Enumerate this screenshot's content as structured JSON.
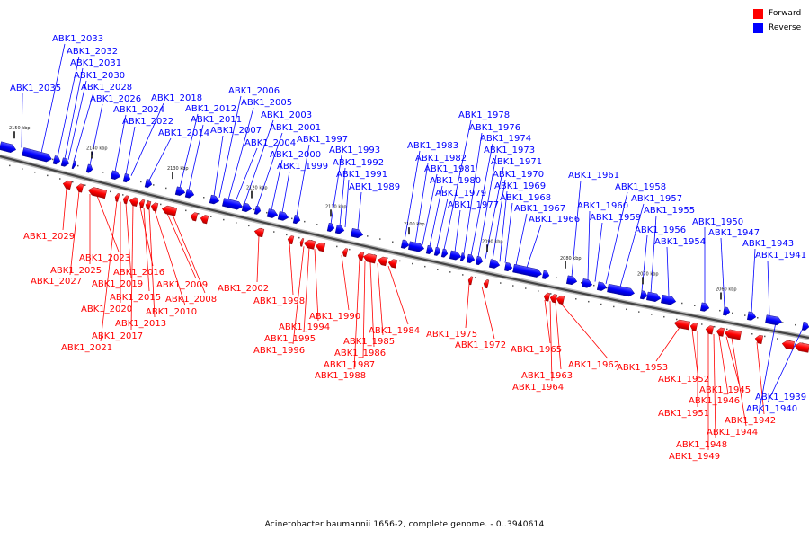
{
  "legend": {
    "forward_label": "Forward",
    "reverse_label": "Reverse",
    "forward_color": "#ff0000",
    "reverse_color": "#0000ff"
  },
  "caption": "Acinetobacter baumannii 1656-2, complete genome. - 0..3940614",
  "ticks": [
    "2150 kbp",
    "2140 kbp",
    "2130 kbp",
    "2120 kbp",
    "2110 kbp",
    "2100 kbp",
    "2090 kbp",
    "2080 kbp",
    "2070 kbp",
    "2060 kbp"
  ],
  "reverse_genes": [
    "ABK1_2035",
    "ABK1_2033",
    "ABK1_2032",
    "ABK1_2031",
    "ABK1_2030",
    "ABK1_2028",
    "ABK1_2026",
    "ABK1_2024",
    "ABK1_2022",
    "ABK1_2018",
    "ABK1_2014",
    "ABK1_2012",
    "ABK1_2011",
    "ABK1_2007",
    "ABK1_2006",
    "ABK1_2005",
    "ABK1_2004",
    "ABK1_2003",
    "ABK1_2001",
    "ABK1_2000",
    "ABK1_1999",
    "ABK1_1997",
    "ABK1_1993",
    "ABK1_1992",
    "ABK1_1991",
    "ABK1_1989",
    "ABK1_1983",
    "ABK1_1982",
    "ABK1_1981",
    "ABK1_1980",
    "ABK1_1979",
    "ABK1_1978",
    "ABK1_1977",
    "ABK1_1976",
    "ABK1_1974",
    "ABK1_1973",
    "ABK1_1971",
    "ABK1_1970",
    "ABK1_1969",
    "ABK1_1968",
    "ABK1_1967",
    "ABK1_1966",
    "ABK1_1961",
    "ABK1_1960",
    "ABK1_1959",
    "ABK1_1958",
    "ABK1_1957",
    "ABK1_1956",
    "ABK1_1955",
    "ABK1_1954",
    "ABK1_1950",
    "ABK1_1947",
    "ABK1_1943",
    "ABK1_1941",
    "ABK1_1940",
    "ABK1_1939"
  ],
  "forward_genes": [
    "ABK1_2029",
    "ABK1_2027",
    "ABK1_2025",
    "ABK1_2023",
    "ABK1_2021",
    "ABK1_2020",
    "ABK1_2019",
    "ABK1_2017",
    "ABK1_2016",
    "ABK1_2015",
    "ABK1_2013",
    "ABK1_2010",
    "ABK1_2009",
    "ABK1_2008",
    "ABK1_2002",
    "ABK1_1998",
    "ABK1_1996",
    "ABK1_1995",
    "ABK1_1994",
    "ABK1_1990",
    "ABK1_1988",
    "ABK1_1987",
    "ABK1_1986",
    "ABK1_1985",
    "ABK1_1984",
    "ABK1_1975",
    "ABK1_1972",
    "ABK1_1965",
    "ABK1_1964",
    "ABK1_1963",
    "ABK1_1962",
    "ABK1_1953",
    "ABK1_1952",
    "ABK1_1951",
    "ABK1_1949",
    "ABK1_1948",
    "ABK1_1946",
    "ABK1_1945",
    "ABK1_1944",
    "ABK1_1942"
  ]
}
